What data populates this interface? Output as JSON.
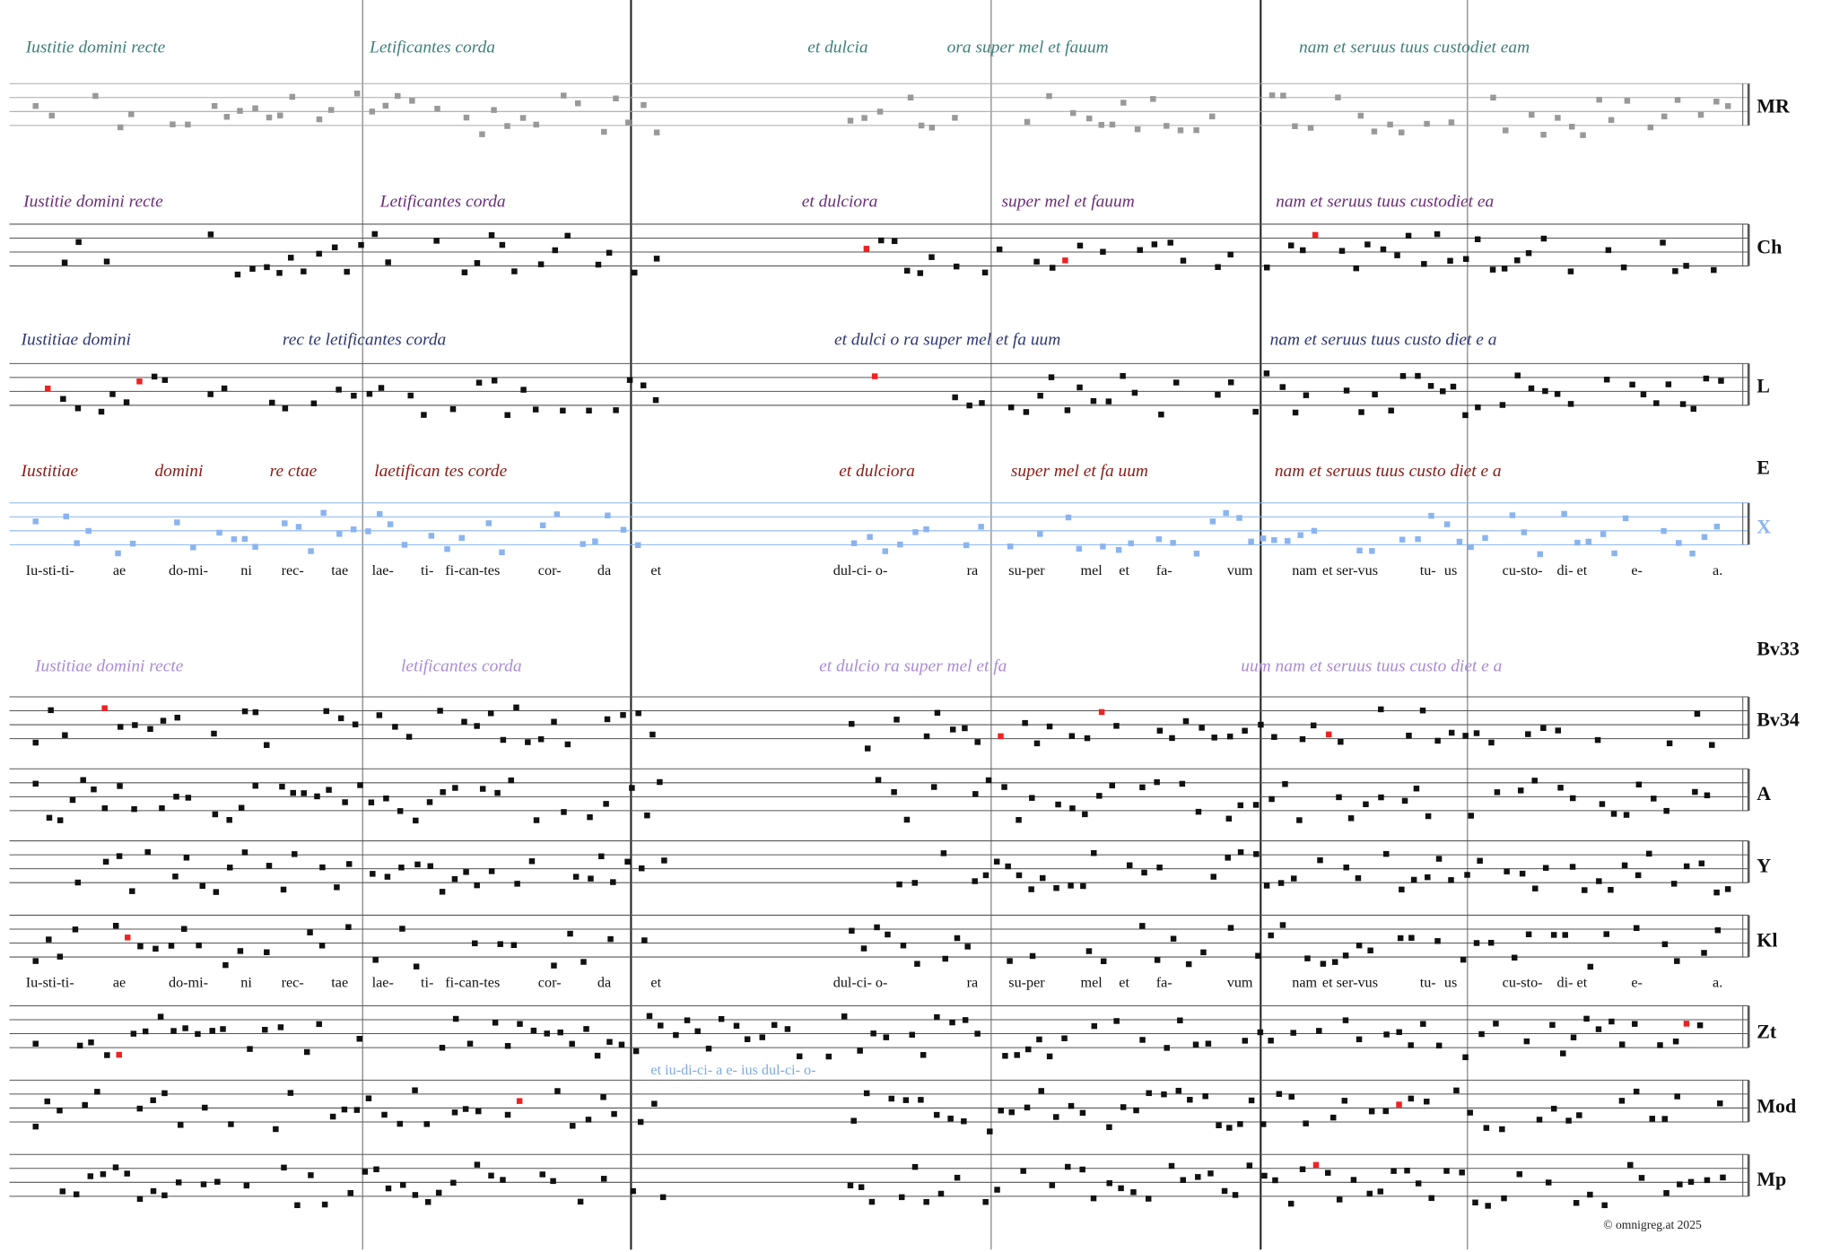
{
  "staves": [
    "MR",
    "Ch",
    "L",
    "E",
    "X",
    "Bv33",
    "Bv34",
    "A",
    "Y",
    "Kl",
    "Zt",
    "Mod",
    "Mp"
  ],
  "handwriting": [
    [
      "Iustitie domini recte",
      "Letificantes corda",
      "et dulcia",
      "ora super mel et fauum",
      "nam et seruus tuus custodiet eam"
    ],
    [
      "Iustitie domini recte",
      "Letificantes corda",
      "et dulciora",
      "super mel et fauum",
      "nam et seruus tuus custodiet ea"
    ],
    [
      "Iustitiae domini",
      "rec te letificantes corda",
      "et dulci o ra super mel et fa uum",
      "nam et seruus tuus custo diet e a"
    ],
    [
      "Iustitiae",
      "domini",
      "re ctae",
      "laetifican tes corde",
      "et dulciora",
      "super mel et fa uum",
      "nam et seruus tuus custo diet e a"
    ],
    [
      "Iustitiae domini recte",
      "letificantes corda",
      "et dulcio ra super mel et fa",
      "uum nam et seruus tuus custo diet e a"
    ]
  ],
  "lyrics": [
    [
      "Iu-sti-ti-",
      "ae",
      "do-mi-",
      "ni",
      "rec-",
      "tae",
      "lae-",
      "ti-",
      "fi-can-tes",
      "cor-",
      "da",
      "et",
      "dul-ci- o-",
      "ra",
      "su-per",
      "mel",
      "et",
      "fa-",
      "vum",
      "nam",
      "et ser-vus",
      "tu-",
      "us",
      "cu-sto-",
      "di- et",
      "e-",
      "a."
    ],
    [
      "Iu-sti-ti-",
      "ae",
      "do-mi-",
      "ni",
      "rec-",
      "tae",
      "lae-",
      "ti-",
      "fi-can-tes",
      "cor-",
      "da",
      "et",
      "dul-ci- o-",
      "ra",
      "su-per",
      "mel",
      "et",
      "fa-",
      "vum",
      "nam",
      "et ser-vus",
      "tu-",
      "us",
      "cu-sto-",
      "di- et",
      "e-",
      "a."
    ]
  ],
  "variant_lyrics": "et   iu-di-ci- a  e-   ius  dul-ci- o-",
  "copyright": "© omnigreg.at    2025"
}
